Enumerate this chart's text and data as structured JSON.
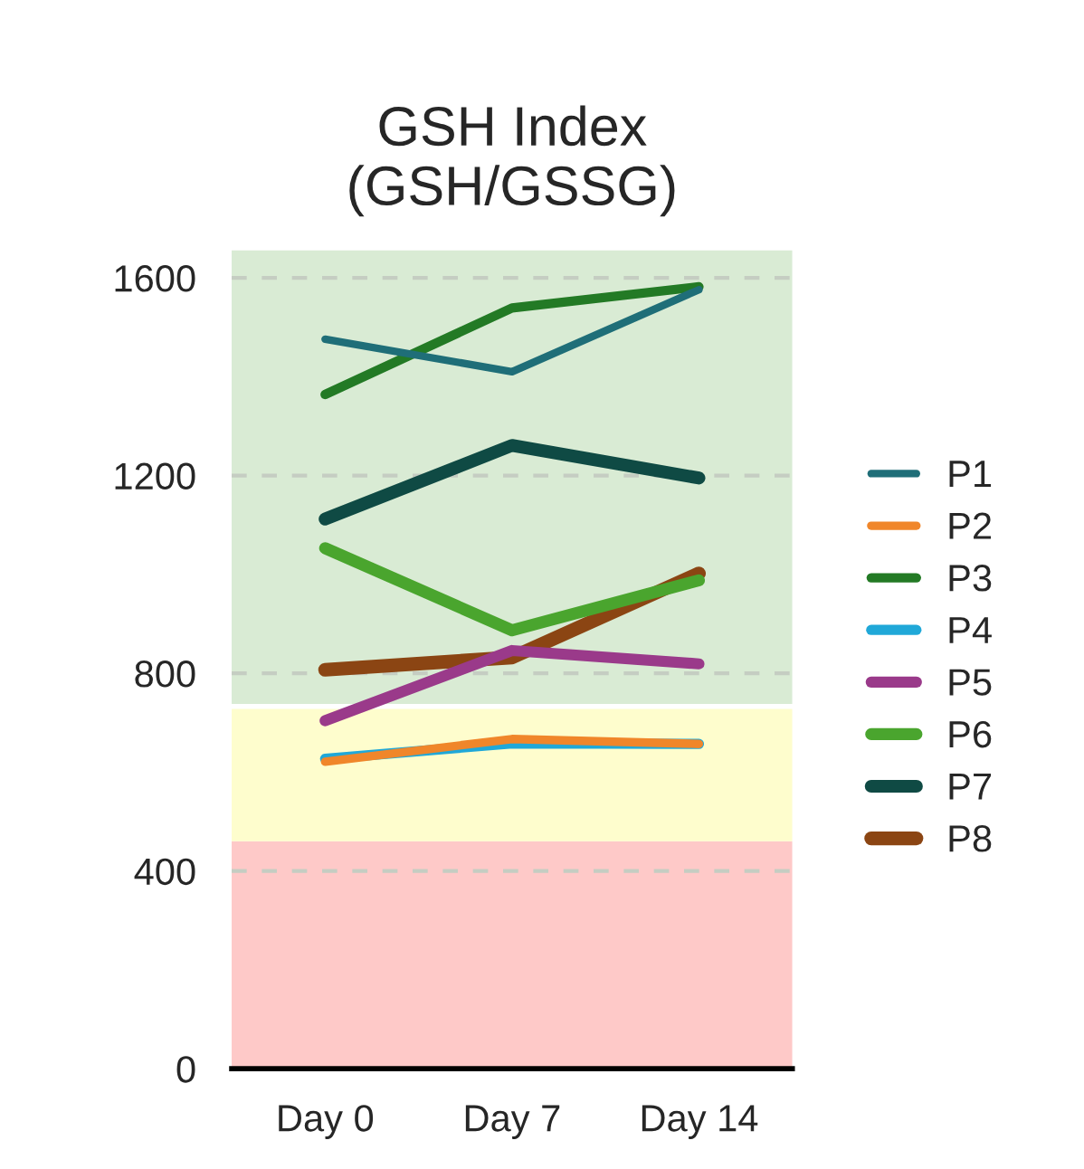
{
  "chart_data": {
    "type": "line",
    "title": "GSH Index\n(GSH/GSSG)",
    "categories": [
      "Day 0",
      "Day 7",
      "Day 14"
    ],
    "series": [
      {
        "name": "P1",
        "color": "#1f6e78",
        "values": [
          1476,
          1410,
          1576
        ]
      },
      {
        "name": "P2",
        "color": "#f0862a",
        "values": [
          621,
          667,
          657
        ]
      },
      {
        "name": "P3",
        "color": "#237a25",
        "values": [
          1364,
          1539,
          1582
        ]
      },
      {
        "name": "P4",
        "color": "#20a8d8",
        "values": [
          627,
          658,
          657
        ]
      },
      {
        "name": "P5",
        "color": "#9a3a8a",
        "values": [
          704,
          846,
          819
        ]
      },
      {
        "name": "P6",
        "color": "#4aa52e",
        "values": [
          1053,
          887,
          988
        ]
      },
      {
        "name": "P7",
        "color": "#0f4a44",
        "values": [
          1112,
          1261,
          1195
        ]
      },
      {
        "name": "P8",
        "color": "#8b4513",
        "values": [
          807,
          832,
          1002
        ]
      }
    ],
    "bands": [
      {
        "axis": "y",
        "from": 0,
        "to": 460,
        "color": "#fec9c8"
      },
      {
        "axis": "y",
        "from": 460,
        "to": 728,
        "color": "#fefdcd"
      },
      {
        "axis": "y",
        "from": 738,
        "to": 1656,
        "color": "#d9ebd4"
      }
    ],
    "ylim": [
      0,
      1656
    ],
    "yticks": [
      0,
      400,
      800,
      1200,
      1600
    ],
    "grid": "y",
    "legend": "right",
    "marker": "none",
    "line_style": "solid"
  }
}
